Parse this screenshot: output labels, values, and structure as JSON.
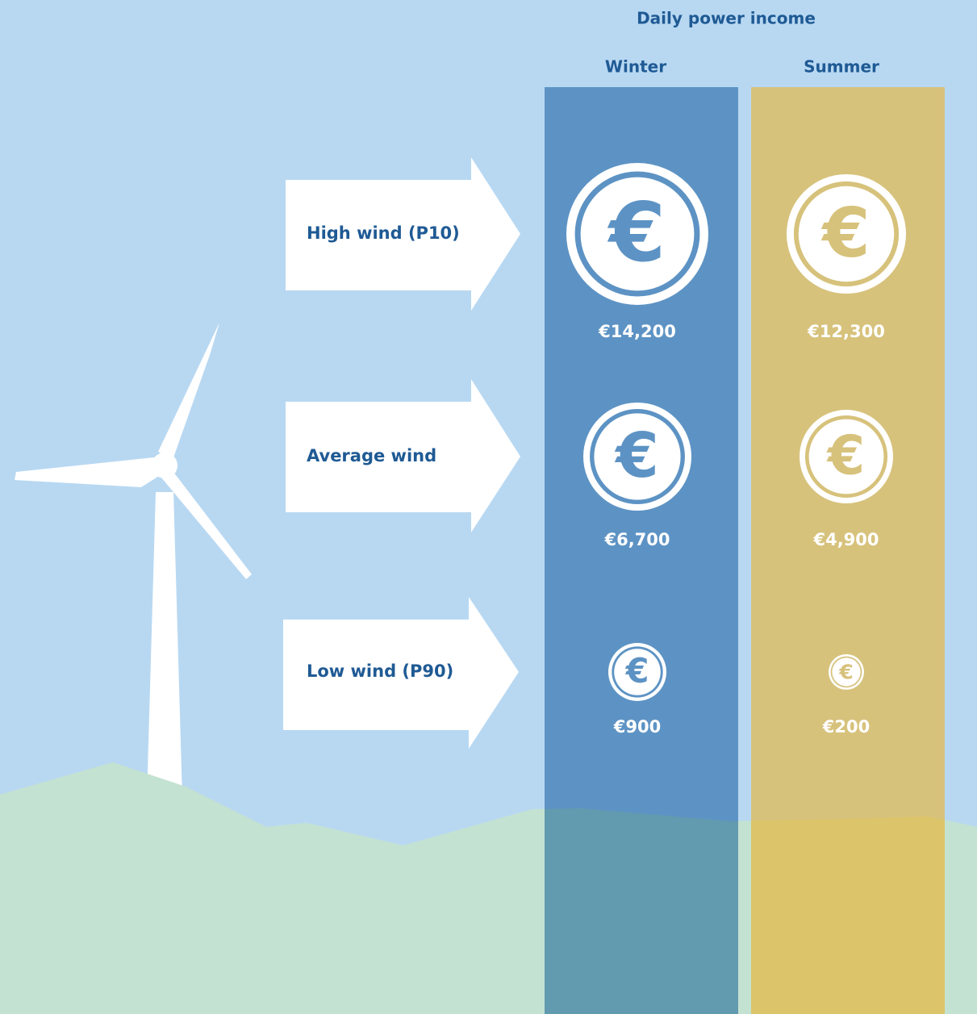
{
  "header": {
    "title": "Daily power income"
  },
  "columns": [
    "Winter",
    "Summer"
  ],
  "rows": [
    {
      "label": "High wind (P10)",
      "values": [
        "€14,200",
        "€12,300"
      ]
    },
    {
      "label": "Average wind",
      "values": [
        "€6,700",
        "€4,900"
      ]
    },
    {
      "label": "Low wind (P90)",
      "values": [
        "€900",
        "€200"
      ]
    }
  ],
  "symbol": "€"
}
